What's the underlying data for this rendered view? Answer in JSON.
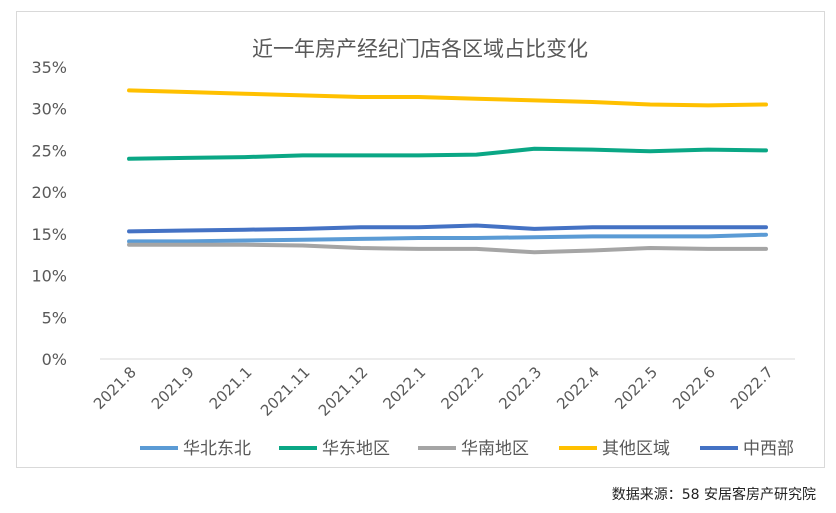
{
  "chart_data": {
    "type": "line",
    "title": "近一年房产经纪门店各区域占比变化",
    "categories": [
      "2021.8",
      "2021.9",
      "2021.1",
      "2021.11",
      "2021.12",
      "2022.1",
      "2022.2",
      "2022.3",
      "2022.4",
      "2022.5",
      "2022.6",
      "2022.7"
    ],
    "y_ticks": [
      "0%",
      "5%",
      "10%",
      "15%",
      "20%",
      "25%",
      "30%",
      "35%"
    ],
    "ylim": [
      0,
      35
    ],
    "grid": false,
    "legend_position": "bottom",
    "series": [
      {
        "name": "华北东北",
        "color": "#5b9bd5",
        "values": [
          14.1,
          14.1,
          14.2,
          14.3,
          14.4,
          14.5,
          14.5,
          14.6,
          14.7,
          14.7,
          14.7,
          14.9
        ]
      },
      {
        "name": "华东地区",
        "color": "#0aa785",
        "values": [
          24.0,
          24.1,
          24.2,
          24.4,
          24.4,
          24.4,
          24.5,
          25.2,
          25.1,
          24.9,
          25.1,
          25.0
        ]
      },
      {
        "name": "华南地区",
        "color": "#a5a5a5",
        "values": [
          13.7,
          13.7,
          13.7,
          13.6,
          13.3,
          13.2,
          13.2,
          12.8,
          13.0,
          13.3,
          13.2,
          13.2
        ]
      },
      {
        "name": "其他区域",
        "color": "#ffc000",
        "values": [
          32.2,
          32.0,
          31.8,
          31.6,
          31.4,
          31.4,
          31.2,
          31.0,
          30.8,
          30.5,
          30.4,
          30.5
        ]
      },
      {
        "name": "中西部",
        "color": "#4472c4",
        "values": [
          15.3,
          15.4,
          15.5,
          15.6,
          15.8,
          15.8,
          16.0,
          15.6,
          15.8,
          15.8,
          15.8,
          15.8
        ]
      }
    ]
  },
  "source_note": "数据来源：58 安居客房产研究院"
}
